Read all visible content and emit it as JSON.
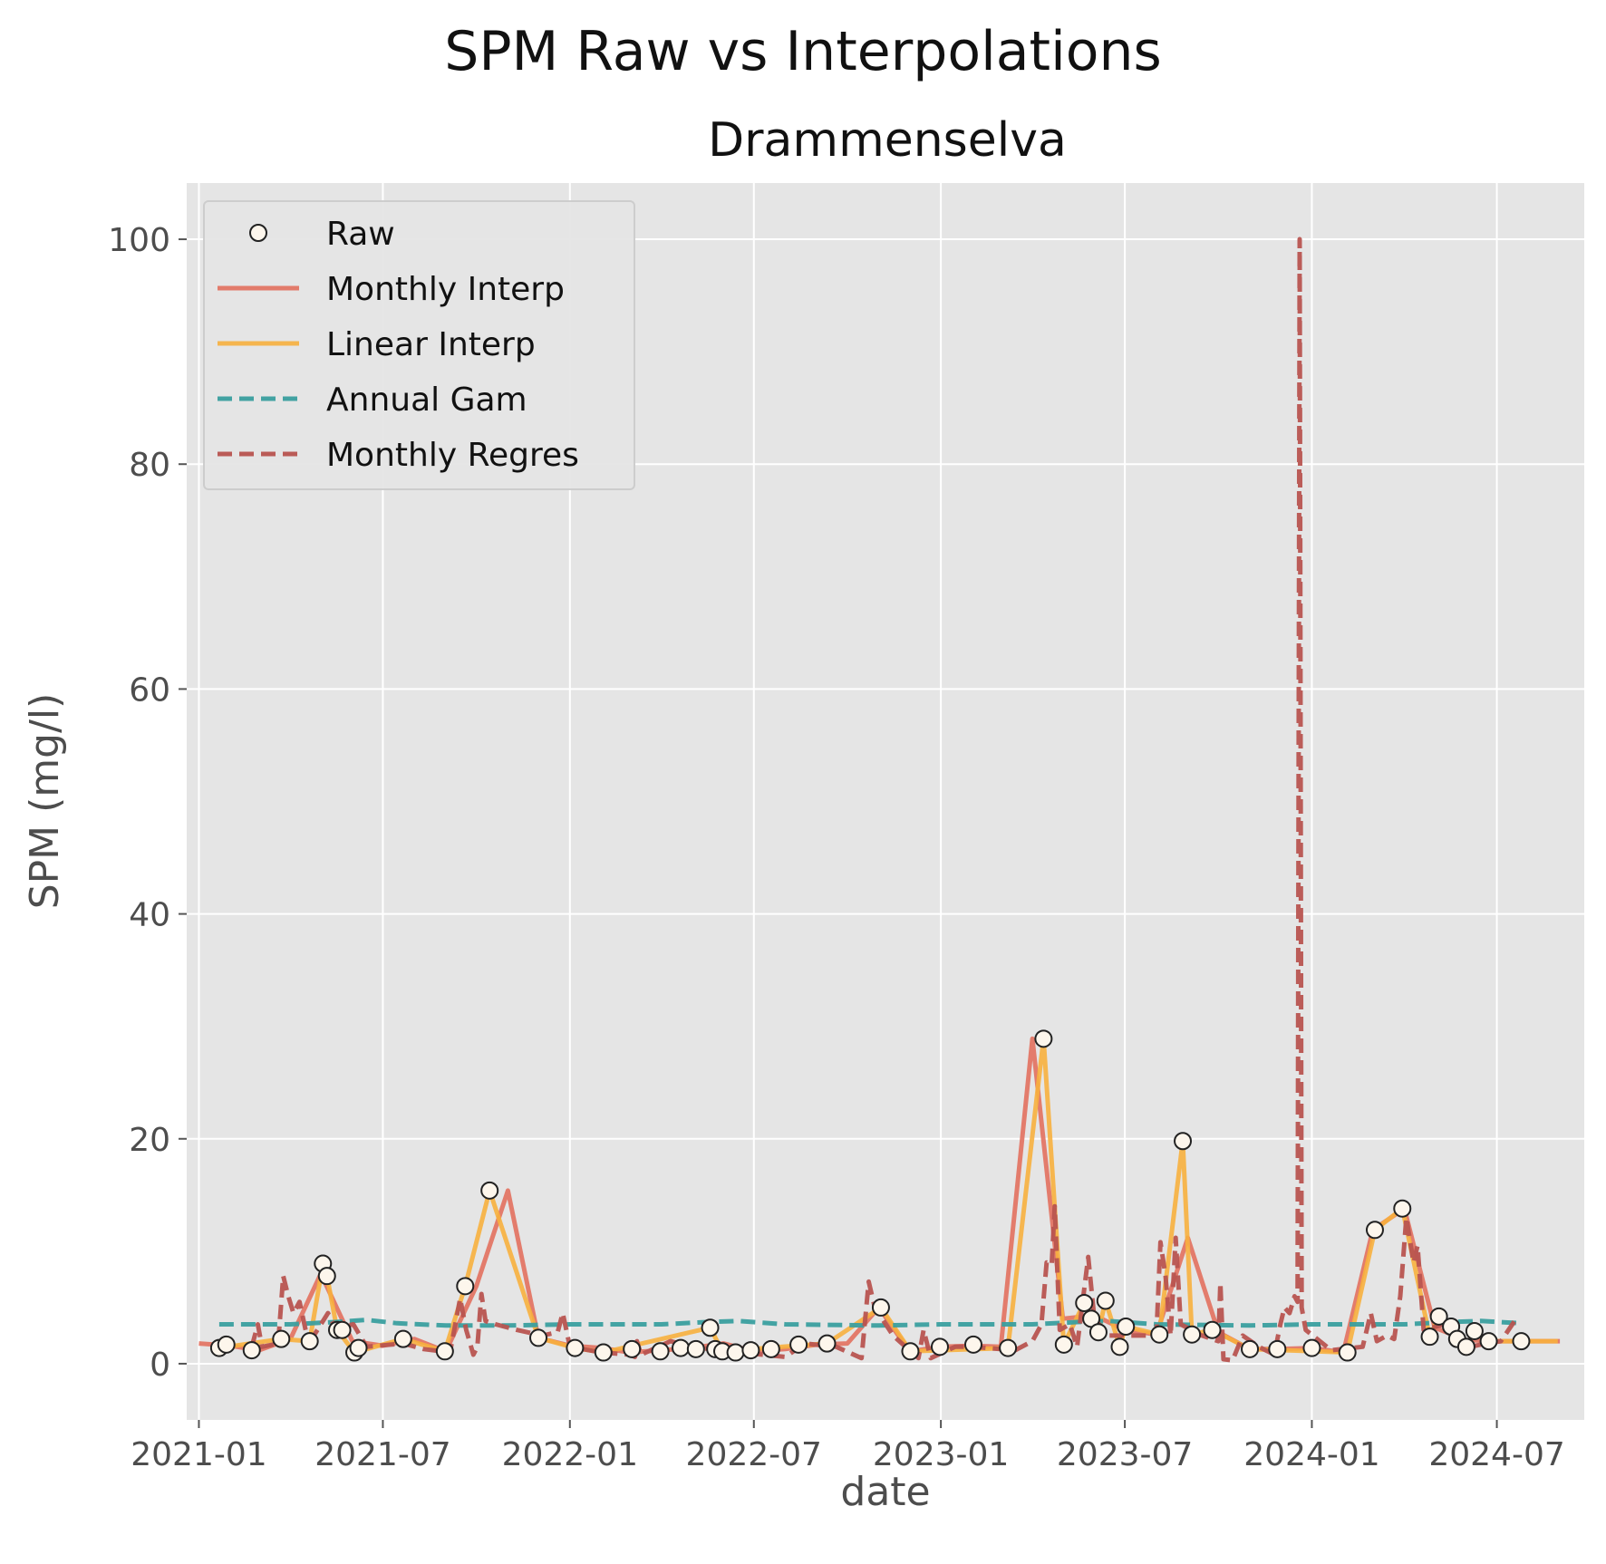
{
  "figure_title": "SPM Raw vs Interpolations",
  "chart_data": {
    "type": "line",
    "title": "Drammenselva",
    "xlabel": "date",
    "ylabel": "SPM (mg/l)",
    "x_type": "date",
    "xlim": [
      "2020-12-20",
      "2024-09-25"
    ],
    "ylim": [
      -5,
      105
    ],
    "x_ticks": [
      "2021-01",
      "2021-07",
      "2022-01",
      "2022-07",
      "2023-01",
      "2023-07",
      "2024-01",
      "2024-07"
    ],
    "y_ticks": [
      0,
      20,
      40,
      60,
      80,
      100
    ],
    "grid": true,
    "legend_position": "top-left",
    "series": [
      {
        "name": "Raw",
        "style": "markers",
        "color": "#fdf6ec",
        "edge_color": "#222222",
        "points": [
          [
            "2021-01-21",
            1.4
          ],
          [
            "2021-01-28",
            1.7
          ],
          [
            "2021-02-22",
            1.2
          ],
          [
            "2021-03-23",
            2.2
          ],
          [
            "2021-04-20",
            2.0
          ],
          [
            "2021-05-03",
            8.9
          ],
          [
            "2021-05-07",
            7.8
          ],
          [
            "2021-05-17",
            3.0
          ],
          [
            "2021-05-22",
            3.0
          ],
          [
            "2021-06-03",
            1.0
          ],
          [
            "2021-06-07",
            1.4
          ],
          [
            "2021-07-21",
            2.2
          ],
          [
            "2021-08-31",
            1.1
          ],
          [
            "2021-09-20",
            6.9
          ],
          [
            "2021-10-14",
            15.4
          ],
          [
            "2021-12-01",
            2.3
          ],
          [
            "2022-01-06",
            1.4
          ],
          [
            "2022-02-03",
            1.0
          ],
          [
            "2022-03-03",
            1.3
          ],
          [
            "2022-03-31",
            1.1
          ],
          [
            "2022-04-20",
            1.4
          ],
          [
            "2022-05-05",
            1.3
          ],
          [
            "2022-05-19",
            3.2
          ],
          [
            "2022-05-24",
            1.3
          ],
          [
            "2022-05-31",
            1.1
          ],
          [
            "2022-06-13",
            1.0
          ],
          [
            "2022-06-28",
            1.2
          ],
          [
            "2022-07-18",
            1.3
          ],
          [
            "2022-08-14",
            1.7
          ],
          [
            "2022-09-11",
            1.8
          ],
          [
            "2022-11-03",
            5.0
          ],
          [
            "2022-12-02",
            1.1
          ],
          [
            "2022-12-31",
            1.5
          ],
          [
            "2023-02-02",
            1.7
          ],
          [
            "2023-03-08",
            1.4
          ],
          [
            "2023-04-12",
            28.9
          ],
          [
            "2023-05-02",
            1.7
          ],
          [
            "2023-05-22",
            5.4
          ],
          [
            "2023-05-29",
            4.0
          ],
          [
            "2023-06-05",
            2.8
          ],
          [
            "2023-06-12",
            5.6
          ],
          [
            "2023-06-26",
            1.5
          ],
          [
            "2023-07-02",
            3.3
          ],
          [
            "2023-08-04",
            2.6
          ],
          [
            "2023-08-27",
            19.8
          ],
          [
            "2023-09-05",
            2.6
          ],
          [
            "2023-09-25",
            3.0
          ],
          [
            "2023-11-01",
            1.3
          ],
          [
            "2023-11-28",
            1.3
          ],
          [
            "2024-01-01",
            1.4
          ],
          [
            "2024-02-05",
            1.0
          ],
          [
            "2024-03-03",
            11.9
          ],
          [
            "2024-03-30",
            13.8
          ],
          [
            "2024-04-26",
            2.4
          ],
          [
            "2024-05-05",
            4.2
          ],
          [
            "2024-05-17",
            3.3
          ],
          [
            "2024-05-23",
            2.2
          ],
          [
            "2024-06-01",
            1.5
          ],
          [
            "2024-06-09",
            2.9
          ],
          [
            "2024-06-23",
            2.0
          ],
          [
            "2024-07-25",
            2.0
          ]
        ]
      },
      {
        "name": "Monthly Interp",
        "style": "solid",
        "color": "#e2705e",
        "points": [
          [
            "2021-01-01",
            1.8
          ],
          [
            "2021-02-01",
            1.6
          ],
          [
            "2021-03-01",
            1.2
          ],
          [
            "2021-04-01",
            2.2
          ],
          [
            "2021-05-01",
            8.0
          ],
          [
            "2021-06-01",
            2.0
          ],
          [
            "2021-07-01",
            1.6
          ],
          [
            "2021-08-01",
            2.2
          ],
          [
            "2021-09-01",
            1.1
          ],
          [
            "2021-10-01",
            6.9
          ],
          [
            "2021-11-01",
            15.4
          ],
          [
            "2021-12-01",
            2.3
          ],
          [
            "2022-01-01",
            1.6
          ],
          [
            "2022-02-01",
            1.4
          ],
          [
            "2022-03-01",
            1.0
          ],
          [
            "2022-04-01",
            1.2
          ],
          [
            "2022-05-01",
            1.4
          ],
          [
            "2022-06-01",
            1.8
          ],
          [
            "2022-07-01",
            1.1
          ],
          [
            "2022-08-01",
            1.3
          ],
          [
            "2022-09-01",
            1.7
          ],
          [
            "2022-10-01",
            1.8
          ],
          [
            "2022-11-01",
            5.0
          ],
          [
            "2022-12-01",
            1.1
          ],
          [
            "2023-01-01",
            1.5
          ],
          [
            "2023-02-01",
            1.6
          ],
          [
            "2023-03-01",
            1.5
          ],
          [
            "2023-04-01",
            28.9
          ],
          [
            "2023-05-01",
            4.0
          ],
          [
            "2023-06-01",
            4.3
          ],
          [
            "2023-07-01",
            3.0
          ],
          [
            "2023-08-01",
            2.6
          ],
          [
            "2023-09-01",
            11.2
          ],
          [
            "2023-10-01",
            2.8
          ],
          [
            "2023-11-01",
            1.3
          ],
          [
            "2023-12-01",
            1.3
          ],
          [
            "2024-01-01",
            1.4
          ],
          [
            "2024-02-01",
            1.0
          ],
          [
            "2024-03-01",
            11.9
          ],
          [
            "2024-04-01",
            13.8
          ],
          [
            "2024-05-01",
            3.2
          ],
          [
            "2024-06-01",
            2.1
          ],
          [
            "2024-07-01",
            2.0
          ],
          [
            "2024-08-01",
            2.0
          ],
          [
            "2024-09-01",
            2.0
          ]
        ]
      },
      {
        "name": "Linear Interp",
        "style": "solid",
        "color": "#f7b03e",
        "points": [
          [
            "2021-01-21",
            1.4
          ],
          [
            "2021-03-23",
            2.2
          ],
          [
            "2021-04-20",
            2.0
          ],
          [
            "2021-05-03",
            8.9
          ],
          [
            "2021-05-07",
            7.8
          ],
          [
            "2021-05-17",
            3.0
          ],
          [
            "2021-06-03",
            1.0
          ],
          [
            "2021-07-21",
            2.2
          ],
          [
            "2021-08-31",
            1.1
          ],
          [
            "2021-09-20",
            6.9
          ],
          [
            "2021-10-14",
            15.4
          ],
          [
            "2021-12-01",
            2.3
          ],
          [
            "2022-01-06",
            1.4
          ],
          [
            "2022-02-03",
            1.0
          ],
          [
            "2022-05-19",
            3.2
          ],
          [
            "2022-05-31",
            1.1
          ],
          [
            "2022-09-11",
            1.8
          ],
          [
            "2022-11-03",
            5.0
          ],
          [
            "2022-12-02",
            1.1
          ],
          [
            "2023-03-08",
            1.4
          ],
          [
            "2023-04-12",
            28.9
          ],
          [
            "2023-05-02",
            1.7
          ],
          [
            "2023-05-22",
            5.4
          ],
          [
            "2023-06-05",
            2.8
          ],
          [
            "2023-06-12",
            5.6
          ],
          [
            "2023-06-26",
            1.5
          ],
          [
            "2023-07-02",
            3.3
          ],
          [
            "2023-08-04",
            2.6
          ],
          [
            "2023-08-27",
            19.8
          ],
          [
            "2023-09-05",
            2.6
          ],
          [
            "2023-09-25",
            3.0
          ],
          [
            "2023-11-01",
            1.3
          ],
          [
            "2024-02-05",
            1.0
          ],
          [
            "2024-03-03",
            11.9
          ],
          [
            "2024-03-30",
            13.8
          ],
          [
            "2024-04-26",
            2.4
          ],
          [
            "2024-05-05",
            4.2
          ],
          [
            "2024-06-01",
            1.5
          ],
          [
            "2024-06-09",
            2.9
          ],
          [
            "2024-06-23",
            2.0
          ],
          [
            "2024-08-30",
            2.0
          ]
        ]
      },
      {
        "name": "Annual Gam",
        "style": "dashed",
        "color": "#3a9f9f",
        "points": [
          [
            "2021-01-21",
            3.5
          ],
          [
            "2021-04-01",
            3.5
          ],
          [
            "2021-05-15",
            3.7
          ],
          [
            "2021-06-15",
            3.9
          ],
          [
            "2021-07-15",
            3.6
          ],
          [
            "2021-09-01",
            3.4
          ],
          [
            "2021-11-01",
            3.4
          ],
          [
            "2022-01-01",
            3.5
          ],
          [
            "2022-04-01",
            3.5
          ],
          [
            "2022-05-15",
            3.7
          ],
          [
            "2022-06-15",
            3.8
          ],
          [
            "2022-08-01",
            3.5
          ],
          [
            "2022-11-01",
            3.4
          ],
          [
            "2023-01-01",
            3.5
          ],
          [
            "2023-04-01",
            3.5
          ],
          [
            "2023-05-15",
            3.7
          ],
          [
            "2023-06-15",
            3.8
          ],
          [
            "2023-08-01",
            3.5
          ],
          [
            "2023-11-01",
            3.4
          ],
          [
            "2024-01-01",
            3.5
          ],
          [
            "2024-04-01",
            3.5
          ],
          [
            "2024-05-15",
            3.7
          ],
          [
            "2024-06-15",
            3.8
          ],
          [
            "2024-07-25",
            3.6
          ]
        ]
      },
      {
        "name": "Monthly Regres",
        "style": "dashed",
        "color": "#b85450",
        "points": [
          [
            "2021-02-22",
            1.5
          ],
          [
            "2021-02-28",
            3.5
          ],
          [
            "2021-03-04",
            1.5
          ],
          [
            "2021-03-20",
            1.8
          ],
          [
            "2021-03-25",
            7.8
          ],
          [
            "2021-03-30",
            6.0
          ],
          [
            "2021-04-04",
            4.5
          ],
          [
            "2021-04-10",
            5.5
          ],
          [
            "2021-04-16",
            3.0
          ],
          [
            "2021-04-22",
            2.2
          ],
          [
            "2021-05-08",
            4.5
          ],
          [
            "2021-05-15",
            3.2
          ],
          [
            "2021-06-02",
            3.5
          ],
          [
            "2021-06-15",
            1.5
          ],
          [
            "2021-07-21",
            1.8
          ],
          [
            "2021-08-10",
            1.3
          ],
          [
            "2021-09-05",
            1.0
          ],
          [
            "2021-09-15",
            5.8
          ],
          [
            "2021-09-21",
            3.0
          ],
          [
            "2021-09-28",
            0.8
          ],
          [
            "2021-10-02",
            1.5
          ],
          [
            "2021-10-06",
            6.2
          ],
          [
            "2021-10-10",
            3.8
          ],
          [
            "2021-10-20",
            3.5
          ],
          [
            "2021-11-10",
            3.0
          ],
          [
            "2021-12-05",
            2.5
          ],
          [
            "2021-12-20",
            2.8
          ],
          [
            "2021-12-25",
            4.5
          ],
          [
            "2022-01-01",
            1.5
          ],
          [
            "2022-02-01",
            1.0
          ],
          [
            "2022-03-01",
            0.8
          ],
          [
            "2022-03-06",
            0.6
          ],
          [
            "2022-03-08",
            2.0
          ],
          [
            "2022-03-12",
            0.8
          ],
          [
            "2022-04-10",
            2.0
          ],
          [
            "2022-05-01",
            1.5
          ],
          [
            "2022-06-15",
            1.0
          ],
          [
            "2022-07-10",
            0.8
          ],
          [
            "2022-08-01",
            0.6
          ],
          [
            "2022-08-20",
            1.8
          ],
          [
            "2022-09-20",
            1.5
          ],
          [
            "2022-10-10",
            0.7
          ],
          [
            "2022-10-15",
            0.5
          ],
          [
            "2022-10-22",
            7.3
          ],
          [
            "2022-10-28",
            5.0
          ],
          [
            "2022-11-15",
            2.5
          ],
          [
            "2022-12-01",
            1.2
          ],
          [
            "2022-12-10",
            0.5
          ],
          [
            "2022-12-15",
            3.0
          ],
          [
            "2022-12-22",
            0.5
          ],
          [
            "2023-01-15",
            1.5
          ],
          [
            "2023-02-01",
            1.5
          ],
          [
            "2023-03-15",
            1.2
          ],
          [
            "2023-04-01",
            2.0
          ],
          [
            "2023-04-10",
            3.5
          ],
          [
            "2023-04-15",
            9.0
          ],
          [
            "2023-04-20",
            8.8
          ],
          [
            "2023-04-23",
            14.0
          ],
          [
            "2023-04-28",
            3.0
          ],
          [
            "2023-05-08",
            3.5
          ],
          [
            "2023-05-15",
            1.5
          ],
          [
            "2023-05-26",
            9.5
          ],
          [
            "2023-06-01",
            4.0
          ],
          [
            "2023-06-15",
            2.5
          ],
          [
            "2023-07-15",
            2.5
          ],
          [
            "2023-08-01",
            2.5
          ],
          [
            "2023-08-05",
            10.8
          ],
          [
            "2023-08-10",
            7.8
          ],
          [
            "2023-08-15",
            2.5
          ],
          [
            "2023-08-20",
            11.2
          ],
          [
            "2023-08-25",
            3.5
          ],
          [
            "2023-09-15",
            2.5
          ],
          [
            "2023-10-01",
            2.0
          ],
          [
            "2023-10-03",
            7.2
          ],
          [
            "2023-10-06",
            0.4
          ],
          [
            "2023-10-15",
            0.3
          ],
          [
            "2023-10-25",
            2.5
          ],
          [
            "2023-11-10",
            1.5
          ],
          [
            "2023-11-25",
            0.8
          ],
          [
            "2023-12-01",
            3.5
          ],
          [
            "2023-12-05",
            5.0
          ],
          [
            "2023-12-10",
            4.5
          ],
          [
            "2023-12-15",
            6.0
          ],
          [
            "2023-12-18",
            5.5
          ],
          [
            "2023-12-20",
            100.0
          ],
          [
            "2023-12-22",
            5.0
          ],
          [
            "2023-12-26",
            3.0
          ],
          [
            "2024-01-20",
            1.2
          ],
          [
            "2024-02-20",
            1.5
          ],
          [
            "2024-02-28",
            4.5
          ],
          [
            "2024-03-05",
            2.0
          ],
          [
            "2024-03-15",
            2.5
          ],
          [
            "2024-03-22",
            2.2
          ],
          [
            "2024-03-28",
            6.0
          ],
          [
            "2024-04-03",
            13.0
          ],
          [
            "2024-04-10",
            9.0
          ],
          [
            "2024-04-14",
            10.5
          ],
          [
            "2024-04-20",
            3.0
          ],
          [
            "2024-05-10",
            3.5
          ],
          [
            "2024-06-05",
            1.5
          ],
          [
            "2024-06-20",
            1.8
          ],
          [
            "2024-07-05",
            2.0
          ],
          [
            "2024-07-20",
            4.0
          ]
        ]
      }
    ]
  }
}
